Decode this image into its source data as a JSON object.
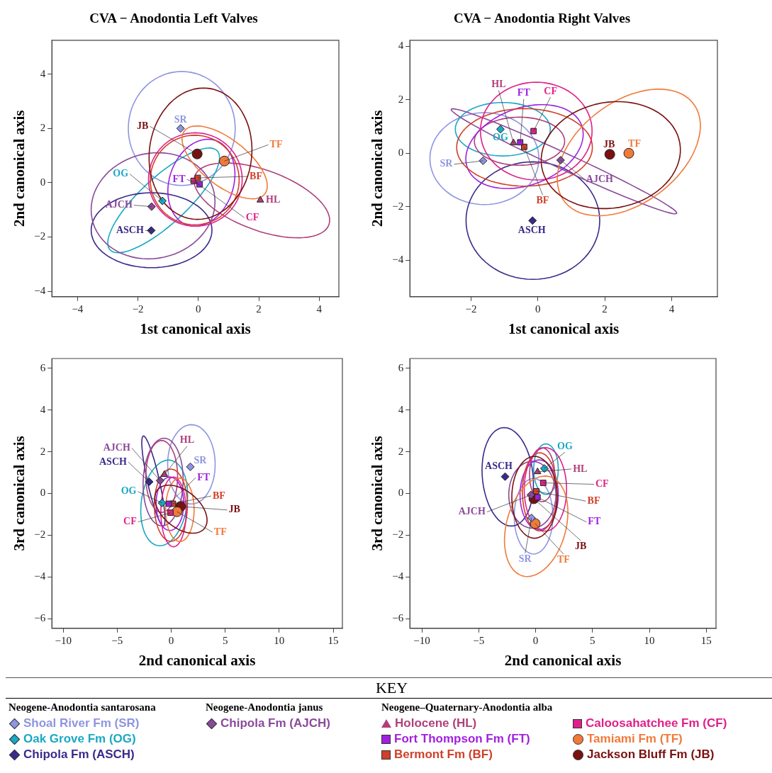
{
  "chart_data": [
    {
      "type": "scatter",
      "title": "CVA − Anodontia Left Valves",
      "xlabel": "1st canonical axis",
      "ylabel": "2nd canonical axis",
      "xlim": [
        -4.85,
        4.65
      ],
      "ylim": [
        -4.2,
        5.25
      ],
      "xticks": [
        -4,
        -2,
        0,
        2,
        4
      ],
      "yticks": [
        -4,
        -2,
        0,
        2,
        4
      ],
      "series": [
        {
          "type": "scatter",
          "color": "#8f95e0",
          "marker": "diamond",
          "x": [
            -0.59
          ],
          "values": [
            2.0
          ]
        },
        {
          "type": "scatter",
          "color": "#1aa8c4",
          "marker": "diamond",
          "x": [
            -1.19
          ],
          "values": [
            -0.67
          ]
        },
        {
          "type": "scatter",
          "color": "#3a2a8a",
          "marker": "diamond",
          "x": [
            -1.56
          ],
          "values": [
            -1.76
          ]
        },
        {
          "type": "scatter",
          "color": "#8a4a9a",
          "marker": "diamond",
          "x": [
            -1.55
          ],
          "values": [
            -0.88
          ]
        },
        {
          "type": "scatter",
          "color": "#b0407a",
          "marker": "triangle",
          "x": [
            2.05
          ],
          "values": [
            -0.64
          ]
        },
        {
          "type": "scatter",
          "color": "#a020e0",
          "marker": "square",
          "x": [
            0.04
          ],
          "values": [
            -0.06
          ]
        },
        {
          "type": "scatter",
          "color": "#d0402a",
          "marker": "square",
          "x": [
            -0.02
          ],
          "values": [
            0.18
          ]
        },
        {
          "type": "scatter",
          "color": "#e0208a",
          "marker": "square",
          "x": [
            -0.16
          ],
          "values": [
            0.07
          ]
        },
        {
          "type": "scatter",
          "color": "#f07a3a",
          "marker": "circle",
          "x": [
            0.86
          ],
          "values": [
            0.8
          ]
        },
        {
          "type": "scatter",
          "color": "#7a1010",
          "marker": "circle",
          "x": [
            -0.04
          ],
          "values": [
            1.06
          ]
        }
      ],
      "annotations": [
        {
          "text": "SR",
          "x": -0.59,
          "y": 2.0
        },
        {
          "text": "OG",
          "x": -1.19,
          "y": -0.67
        },
        {
          "text": "ASCH",
          "x": -1.56,
          "y": -1.76
        },
        {
          "text": "AJCH",
          "x": -1.55,
          "y": -0.88
        },
        {
          "text": "HL",
          "x": 2.05,
          "y": -0.64
        },
        {
          "text": "FT",
          "x": 0.04,
          "y": -0.06
        },
        {
          "text": "BF",
          "x": -0.02,
          "y": 0.18
        },
        {
          "text": "CF",
          "x": -0.16,
          "y": 0.07
        },
        {
          "text": "TF",
          "x": 0.86,
          "y": 0.8
        },
        {
          "text": "JB",
          "x": -0.04,
          "y": 1.06
        }
      ]
    },
    {
      "type": "scatter",
      "title": "CVA − Anodontia Right Valves",
      "xlabel": "1st canonical axis",
      "ylabel": "2nd canonical axis",
      "xlim": [
        -3.83,
        5.37
      ],
      "ylim": [
        -5.37,
        4.23
      ],
      "xticks": [
        -2,
        0,
        2,
        4
      ],
      "yticks": [
        -4,
        -2,
        0,
        2,
        4
      ],
      "series": [
        {
          "type": "scatter",
          "color": "#8f95e0",
          "marker": "diamond",
          "x": [
            -1.64
          ],
          "values": [
            -0.28
          ]
        },
        {
          "type": "scatter",
          "color": "#1aa8c4",
          "marker": "diamond",
          "x": [
            -1.12
          ],
          "values": [
            0.9
          ]
        },
        {
          "type": "scatter",
          "color": "#3a2a8a",
          "marker": "diamond",
          "x": [
            -0.16
          ],
          "values": [
            -2.52
          ]
        },
        {
          "type": "scatter",
          "color": "#8a4a9a",
          "marker": "diamond",
          "x": [
            0.68
          ],
          "values": [
            -0.26
          ]
        },
        {
          "type": "scatter",
          "color": "#b0407a",
          "marker": "triangle",
          "x": [
            -0.73
          ],
          "values": [
            0.39
          ]
        },
        {
          "type": "scatter",
          "color": "#a020e0",
          "marker": "square",
          "x": [
            -0.53
          ],
          "values": [
            0.41
          ]
        },
        {
          "type": "scatter",
          "color": "#d0402a",
          "marker": "square",
          "x": [
            -0.41
          ],
          "values": [
            0.24
          ]
        },
        {
          "type": "scatter",
          "color": "#e0208a",
          "marker": "square",
          "x": [
            -0.13
          ],
          "values": [
            0.83
          ]
        },
        {
          "type": "scatter",
          "color": "#f07a3a",
          "marker": "circle",
          "x": [
            2.72
          ],
          "values": [
            0.0
          ]
        },
        {
          "type": "scatter",
          "color": "#7a1010",
          "marker": "circle",
          "x": [
            2.15
          ],
          "values": [
            -0.04
          ]
        }
      ],
      "annotations": [
        {
          "text": "SR",
          "x": -1.64,
          "y": -0.28
        },
        {
          "text": "OG",
          "x": -1.12,
          "y": 0.9
        },
        {
          "text": "ASCH",
          "x": -0.16,
          "y": -2.52
        },
        {
          "text": "AJCH",
          "x": 0.68,
          "y": -0.26
        },
        {
          "text": "HL",
          "x": -0.73,
          "y": 0.39
        },
        {
          "text": "FT",
          "x": -0.53,
          "y": 0.41
        },
        {
          "text": "BF",
          "x": -0.41,
          "y": 0.24
        },
        {
          "text": "CF",
          "x": -0.13,
          "y": 0.83
        },
        {
          "text": "TF",
          "x": 2.72,
          "y": 0.0
        },
        {
          "text": "JB",
          "x": 2.15,
          "y": -0.04
        }
      ]
    },
    {
      "type": "scatter",
      "xlabel": "2nd canonical axis",
      "ylabel": "3rd canonical axis",
      "xlim": [
        -11.05,
        15.85
      ],
      "ylim": [
        -6.46,
        6.47
      ],
      "xticks": [
        -10,
        -5,
        0,
        5,
        10,
        15
      ],
      "yticks": [
        -6,
        -4,
        -2,
        0,
        2,
        4,
        6
      ],
      "series": [
        {
          "type": "scatter",
          "color": "#8f95e0",
          "marker": "diamond",
          "x": [
            1.77
          ],
          "values": [
            1.28
          ]
        },
        {
          "type": "scatter",
          "color": "#1aa8c4",
          "marker": "diamond",
          "x": [
            -0.85
          ],
          "values": [
            -0.45
          ]
        },
        {
          "type": "scatter",
          "color": "#3a2a8a",
          "marker": "diamond",
          "x": [
            -2.04
          ],
          "values": [
            0.56
          ]
        },
        {
          "type": "scatter",
          "color": "#8a4a9a",
          "marker": "diamond",
          "x": [
            -1.03
          ],
          "values": [
            0.62
          ]
        },
        {
          "type": "scatter",
          "color": "#b0407a",
          "marker": "triangle",
          "x": [
            -0.63
          ],
          "values": [
            0.91
          ]
        },
        {
          "type": "scatter",
          "color": "#a020e0",
          "marker": "square",
          "x": [
            -0.22
          ],
          "values": [
            -0.49
          ]
        },
        {
          "type": "scatter",
          "color": "#d0402a",
          "marker": "square",
          "x": [
            0.16
          ],
          "values": [
            -0.49
          ]
        },
        {
          "type": "scatter",
          "color": "#e0208a",
          "marker": "square",
          "x": [
            -0.07
          ],
          "values": [
            -0.92
          ]
        },
        {
          "type": "scatter",
          "color": "#f07a3a",
          "marker": "circle",
          "x": [
            0.54
          ],
          "values": [
            -0.87
          ]
        },
        {
          "type": "scatter",
          "color": "#7a1010",
          "marker": "circle",
          "x": [
            0.87
          ],
          "values": [
            -0.62
          ]
        }
      ],
      "annotations": [
        {
          "text": "SR",
          "x": 1.77,
          "y": 1.28
        },
        {
          "text": "OG",
          "x": -0.85,
          "y": -0.45
        },
        {
          "text": "ASCH",
          "x": -2.04,
          "y": 0.56
        },
        {
          "text": "AJCH",
          "x": -1.03,
          "y": 0.62
        },
        {
          "text": "HL",
          "x": -0.63,
          "y": 0.91
        },
        {
          "text": "FT",
          "x": -0.22,
          "y": -0.49
        },
        {
          "text": "BF",
          "x": 0.16,
          "y": -0.49
        },
        {
          "text": "CF",
          "x": -0.07,
          "y": -0.92
        },
        {
          "text": "TF",
          "x": 0.54,
          "y": -0.87
        },
        {
          "text": "JB",
          "x": 0.87,
          "y": -0.62
        }
      ]
    },
    {
      "type": "scatter",
      "xlabel": "2nd canonical axis",
      "ylabel": "3rd canonical axis",
      "xlim": [
        -11.05,
        15.85
      ],
      "ylim": [
        -6.46,
        6.47
      ],
      "xticks": [
        -10,
        -5,
        0,
        5,
        10,
        15
      ],
      "yticks": [
        -6,
        -4,
        -2,
        0,
        2,
        4,
        6
      ],
      "legend": "bottom",
      "legend_title": "KEY",
      "series": [
        {
          "type": "scatter",
          "name": "Shoal River Fm (SR)",
          "color": "#8f95e0",
          "marker": "diamond",
          "x": [
            -0.36
          ],
          "values": [
            -1.17
          ]
        },
        {
          "type": "scatter",
          "name": "Oak Grove Fm (OG)",
          "color": "#1aa8c4",
          "marker": "diamond",
          "x": [
            0.77
          ],
          "values": [
            1.2
          ]
        },
        {
          "type": "scatter",
          "name": "Chipola Fm (ASCH)",
          "color": "#3a2a8a",
          "marker": "diamond",
          "x": [
            -2.68
          ],
          "values": [
            0.81
          ]
        },
        {
          "type": "scatter",
          "name": "Chipola Fm (AJCH)",
          "color": "#8a4a9a",
          "marker": "diamond",
          "x": [
            -0.42
          ],
          "values": [
            -0.07
          ]
        },
        {
          "type": "scatter",
          "name": "Holocene (HL)",
          "color": "#b0407a",
          "marker": "triangle",
          "x": [
            0.17
          ],
          "values": [
            1.04
          ]
        },
        {
          "type": "scatter",
          "name": "Fort Thompson Fm (FT)",
          "color": "#a020e0",
          "marker": "square",
          "x": [
            0.17
          ],
          "values": [
            -0.18
          ]
        },
        {
          "type": "scatter",
          "name": "Bermont Fm (BF)",
          "color": "#d0402a",
          "marker": "square",
          "x": [
            0.06
          ],
          "values": [
            0.11
          ]
        },
        {
          "type": "scatter",
          "name": "Caloosahatchee Fm (CF)",
          "color": "#e0208a",
          "marker": "square",
          "x": [
            0.67
          ],
          "values": [
            0.51
          ]
        },
        {
          "type": "scatter",
          "name": "Tamiami Fm (TF)",
          "color": "#f07a3a",
          "marker": "circle",
          "x": [
            -0.04
          ],
          "values": [
            -1.44
          ]
        },
        {
          "type": "scatter",
          "name": "Jackson Bluff Fm (JB)",
          "color": "#7a1010",
          "marker": "circle",
          "x": [
            -0.15
          ],
          "values": [
            -0.25
          ]
        }
      ],
      "annotations": [
        {
          "text": "SR",
          "x": -0.36,
          "y": -1.17
        },
        {
          "text": "OG",
          "x": 0.77,
          "y": 1.2
        },
        {
          "text": "ASCH",
          "x": -2.68,
          "y": 0.81
        },
        {
          "text": "AJCH",
          "x": -0.42,
          "y": -0.07
        },
        {
          "text": "HL",
          "x": 0.17,
          "y": 1.04
        },
        {
          "text": "FT",
          "x": 0.17,
          "y": -0.18
        },
        {
          "text": "BF",
          "x": 0.06,
          "y": 0.11
        },
        {
          "text": "CF",
          "x": 0.67,
          "y": 0.51
        },
        {
          "text": "TF",
          "x": -0.04,
          "y": -1.44
        },
        {
          "text": "JB",
          "x": -0.15,
          "y": -0.25
        },
        "Neogene-Anodontia santarosana",
        "Neogene-Anodontia janus",
        "Neogene–Quaternary-Anodontia alba"
      ]
    }
  ]
}
